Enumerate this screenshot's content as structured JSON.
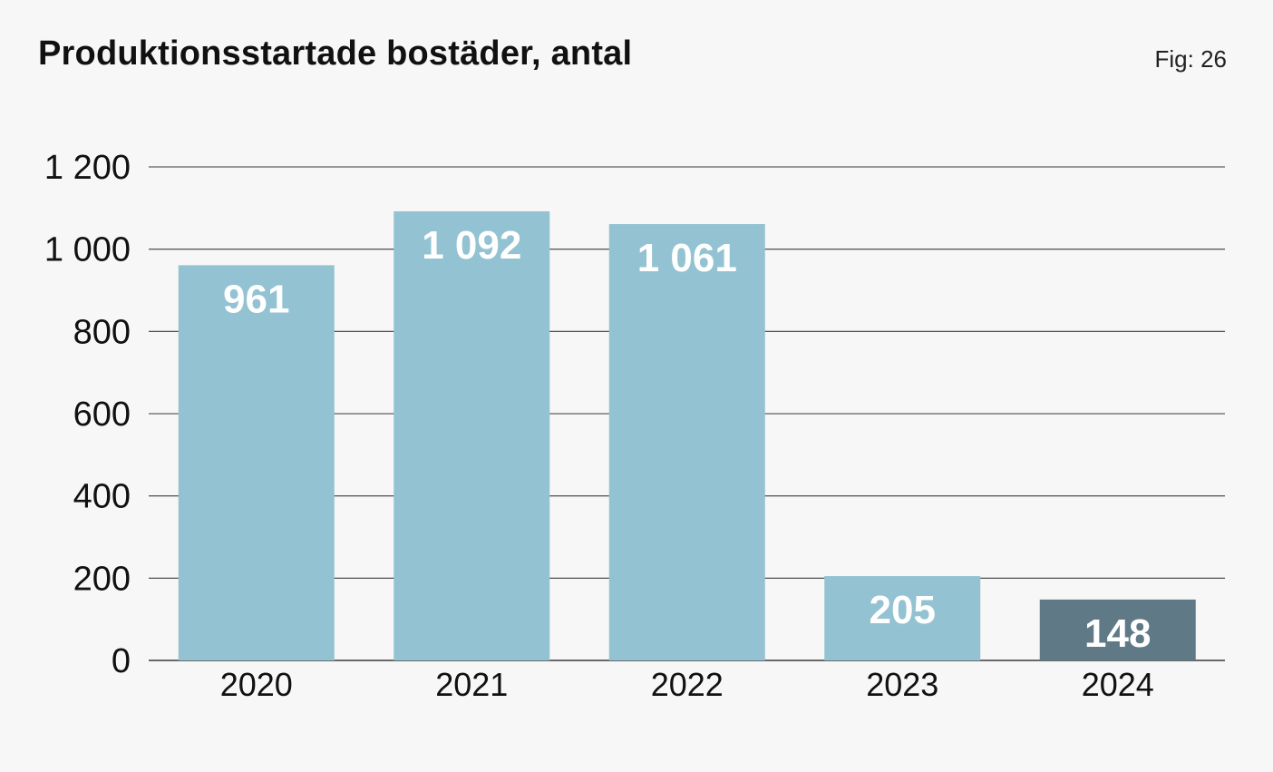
{
  "header": {
    "title": "Produktionsstartade bostäder, antal",
    "fig_label": "Fig: 26"
  },
  "colors": {
    "bar_default": "#93c3d2",
    "bar_highlight": "#5f7a86",
    "bar_label": "#ffffff",
    "gridline": "#3a3a3a",
    "axis_text": "#111111",
    "background": "#f7f7f7"
  },
  "chart_data": {
    "type": "bar",
    "title": "Produktionsstartade bostäder, antal",
    "xlabel": "",
    "ylabel": "",
    "categories": [
      "2020",
      "2021",
      "2022",
      "2023",
      "2024"
    ],
    "values": [
      961,
      1092,
      1061,
      205,
      148
    ],
    "value_labels": [
      "961",
      "1 092",
      "1 061",
      "205",
      "148"
    ],
    "highlight_index": 4,
    "ylim": [
      0,
      1200
    ],
    "yticks": [
      0,
      200,
      400,
      600,
      800,
      1000,
      1200
    ],
    "ytick_labels": [
      "0",
      "200",
      "400",
      "600",
      "800",
      "1 000",
      "1 200"
    ],
    "grid": true,
    "legend": "none"
  }
}
